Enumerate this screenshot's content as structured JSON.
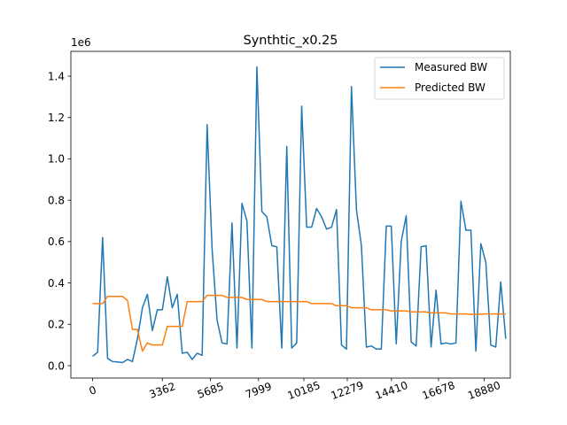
{
  "chart_data": {
    "type": "line",
    "title": "Synthtic_x0.25",
    "xlabel": "",
    "ylabel": "",
    "y_offset_label": "1e6",
    "xlim": [
      -1050,
      20140
    ],
    "ylim": [
      -0.06,
      1.52
    ],
    "x_ticks": [
      0,
      3362,
      5685,
      7999,
      10185,
      12279,
      14410,
      16678,
      18880
    ],
    "y_ticks": [
      0.0,
      0.2,
      0.4,
      0.6,
      0.8,
      1.0,
      1.2,
      1.4
    ],
    "y_tick_labels": [
      "0.0",
      "0.2",
      "0.4",
      "0.6",
      "0.8",
      "1.0",
      "1.2",
      "1.4"
    ],
    "legend": {
      "position": "top-right"
    },
    "grid": false,
    "series": [
      {
        "name": "Measured BW",
        "color": "#1f77b4",
        "points": [
          [
            0,
            0.045
          ],
          [
            240,
            0.065
          ],
          [
            480,
            0.62
          ],
          [
            720,
            0.035
          ],
          [
            960,
            0.02
          ],
          [
            1200,
            0.018
          ],
          [
            1440,
            0.015
          ],
          [
            1680,
            0.03
          ],
          [
            1920,
            0.02
          ],
          [
            2160,
            0.13
          ],
          [
            2400,
            0.28
          ],
          [
            2640,
            0.345
          ],
          [
            2880,
            0.17
          ],
          [
            3120,
            0.27
          ],
          [
            3362,
            0.27
          ],
          [
            3600,
            0.43
          ],
          [
            3840,
            0.28
          ],
          [
            4080,
            0.345
          ],
          [
            4320,
            0.06
          ],
          [
            4560,
            0.065
          ],
          [
            4800,
            0.03
          ],
          [
            5040,
            0.06
          ],
          [
            5280,
            0.05
          ],
          [
            5520,
            1.165
          ],
          [
            5760,
            0.565
          ],
          [
            6000,
            0.22
          ],
          [
            6240,
            0.11
          ],
          [
            6480,
            0.105
          ],
          [
            6720,
            0.69
          ],
          [
            6960,
            0.085
          ],
          [
            7200,
            0.785
          ],
          [
            7440,
            0.7
          ],
          [
            7680,
            0.085
          ],
          [
            7920,
            1.445
          ],
          [
            8160,
            0.745
          ],
          [
            8400,
            0.72
          ],
          [
            8640,
            0.58
          ],
          [
            8880,
            0.575
          ],
          [
            9120,
            0.085
          ],
          [
            9360,
            1.06
          ],
          [
            9600,
            0.085
          ],
          [
            9840,
            0.11
          ],
          [
            10080,
            1.255
          ],
          [
            10320,
            0.67
          ],
          [
            10560,
            0.67
          ],
          [
            10800,
            0.76
          ],
          [
            11040,
            0.72
          ],
          [
            11280,
            0.66
          ],
          [
            11520,
            0.67
          ],
          [
            11760,
            0.755
          ],
          [
            12000,
            0.1
          ],
          [
            12240,
            0.08
          ],
          [
            12480,
            1.35
          ],
          [
            12720,
            0.755
          ],
          [
            12960,
            0.58
          ],
          [
            13200,
            0.09
          ],
          [
            13440,
            0.095
          ],
          [
            13680,
            0.08
          ],
          [
            13920,
            0.08
          ],
          [
            14160,
            0.675
          ],
          [
            14400,
            0.675
          ],
          [
            14640,
            0.105
          ],
          [
            14880,
            0.6
          ],
          [
            15120,
            0.725
          ],
          [
            15360,
            0.115
          ],
          [
            15600,
            0.095
          ],
          [
            15840,
            0.575
          ],
          [
            16080,
            0.58
          ],
          [
            16320,
            0.09
          ],
          [
            16560,
            0.365
          ],
          [
            16800,
            0.105
          ],
          [
            17040,
            0.11
          ],
          [
            17280,
            0.105
          ],
          [
            17520,
            0.11
          ],
          [
            17760,
            0.795
          ],
          [
            18000,
            0.655
          ],
          [
            18240,
            0.655
          ],
          [
            18480,
            0.07
          ],
          [
            18720,
            0.59
          ],
          [
            18960,
            0.5
          ],
          [
            19200,
            0.1
          ],
          [
            19440,
            0.09
          ],
          [
            19680,
            0.405
          ],
          [
            19920,
            0.13
          ]
        ]
      },
      {
        "name": "Predicted BW",
        "color": "#ff7f0e",
        "points": [
          [
            0,
            0.3
          ],
          [
            480,
            0.3
          ],
          [
            720,
            0.335
          ],
          [
            1440,
            0.335
          ],
          [
            1680,
            0.315
          ],
          [
            1920,
            0.175
          ],
          [
            2160,
            0.175
          ],
          [
            2400,
            0.07
          ],
          [
            2640,
            0.11
          ],
          [
            2880,
            0.1
          ],
          [
            3120,
            0.1
          ],
          [
            3362,
            0.1
          ],
          [
            3600,
            0.19
          ],
          [
            3840,
            0.19
          ],
          [
            4080,
            0.19
          ],
          [
            4320,
            0.19
          ],
          [
            4560,
            0.31
          ],
          [
            5280,
            0.31
          ],
          [
            5520,
            0.34
          ],
          [
            6240,
            0.34
          ],
          [
            6480,
            0.33
          ],
          [
            7200,
            0.33
          ],
          [
            7440,
            0.32
          ],
          [
            7920,
            0.32
          ],
          [
            8160,
            0.32
          ],
          [
            8400,
            0.31
          ],
          [
            9120,
            0.31
          ],
          [
            9360,
            0.31
          ],
          [
            10320,
            0.31
          ],
          [
            10560,
            0.3
          ],
          [
            11520,
            0.3
          ],
          [
            11760,
            0.29
          ],
          [
            12240,
            0.29
          ],
          [
            12480,
            0.28
          ],
          [
            13200,
            0.28
          ],
          [
            13440,
            0.27
          ],
          [
            14160,
            0.27
          ],
          [
            14400,
            0.265
          ],
          [
            15120,
            0.265
          ],
          [
            15360,
            0.26
          ],
          [
            16080,
            0.26
          ],
          [
            16320,
            0.255
          ],
          [
            17040,
            0.255
          ],
          [
            17280,
            0.25
          ],
          [
            18000,
            0.25
          ],
          [
            18240,
            0.248
          ],
          [
            18960,
            0.25
          ],
          [
            19440,
            0.25
          ],
          [
            19920,
            0.25
          ]
        ]
      }
    ]
  }
}
